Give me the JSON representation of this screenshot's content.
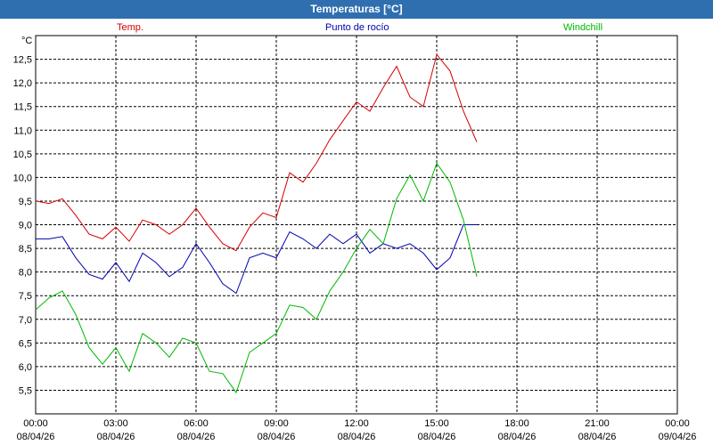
{
  "window": {
    "title": "Temperaturas [°C]"
  },
  "colors": {
    "temp": "#d40000",
    "dew": "#0000b0",
    "windchill": "#00b800",
    "title_bg": "#2f6fb0"
  },
  "chart_data": {
    "type": "line",
    "title": "Temperaturas [°C]",
    "ylabel": "°C",
    "ylim": [
      5.0,
      13.0
    ],
    "xlim": [
      0,
      24
    ],
    "grid": true,
    "legend": "top",
    "y_ticks": [
      "5,5",
      "6,0",
      "6,5",
      "7,0",
      "7,5",
      "8,0",
      "8,5",
      "9,0",
      "9,5",
      "10,0",
      "10,5",
      "11,0",
      "11,5",
      "12,0",
      "12,5"
    ],
    "x_ticks": [
      {
        "time": "00:00",
        "date": "08/04/26"
      },
      {
        "time": "03:00",
        "date": "08/04/26"
      },
      {
        "time": "06:00",
        "date": "08/04/26"
      },
      {
        "time": "09:00",
        "date": "08/04/26"
      },
      {
        "time": "12:00",
        "date": "08/04/26"
      },
      {
        "time": "15:00",
        "date": "08/04/26"
      },
      {
        "time": "18:00",
        "date": "08/04/26"
      },
      {
        "time": "21:00",
        "date": "08/04/26"
      },
      {
        "time": "00:00",
        "date": "09/04/26"
      }
    ],
    "x": [
      0,
      0.5,
      1,
      1.5,
      2,
      2.5,
      3,
      3.5,
      4,
      4.5,
      5,
      5.5,
      6,
      6.5,
      7,
      7.5,
      8,
      8.5,
      9,
      9.5,
      10,
      10.5,
      11,
      11.5,
      12,
      12.5,
      13,
      13.5,
      14,
      14.5,
      15,
      15.5,
      16,
      16.5
    ],
    "series": [
      {
        "name": "Temp.",
        "key": "temp",
        "values": [
          9.5,
          9.45,
          9.55,
          9.2,
          8.8,
          8.7,
          8.95,
          8.65,
          9.1,
          9.0,
          8.8,
          9.0,
          9.35,
          8.95,
          8.6,
          8.45,
          8.95,
          9.25,
          9.15,
          10.1,
          9.9,
          10.3,
          10.8,
          11.2,
          11.6,
          11.4,
          11.9,
          12.35,
          11.7,
          11.5,
          12.6,
          12.25,
          11.4,
          10.75
        ]
      },
      {
        "name": "Punto de rocío",
        "key": "dew",
        "values": [
          8.7,
          8.7,
          8.75,
          8.3,
          7.95,
          7.85,
          8.2,
          7.8,
          8.4,
          8.2,
          7.9,
          8.1,
          8.6,
          8.2,
          7.75,
          7.55,
          8.3,
          8.4,
          8.3,
          8.85,
          8.7,
          8.5,
          8.8,
          8.6,
          8.8,
          8.4,
          8.6,
          8.5,
          8.6,
          8.4,
          8.05,
          8.3,
          9.0,
          9.0
        ]
      },
      {
        "name": "Windchill",
        "key": "windchill",
        "values": [
          7.2,
          7.45,
          7.6,
          7.1,
          6.4,
          6.05,
          6.4,
          5.9,
          6.7,
          6.5,
          6.2,
          6.6,
          6.5,
          5.9,
          5.85,
          5.45,
          6.3,
          6.5,
          6.7,
          7.3,
          7.25,
          7.0,
          7.6,
          8.0,
          8.5,
          8.9,
          8.6,
          9.55,
          10.05,
          9.5,
          10.3,
          9.9,
          9.1,
          7.9
        ]
      }
    ]
  }
}
